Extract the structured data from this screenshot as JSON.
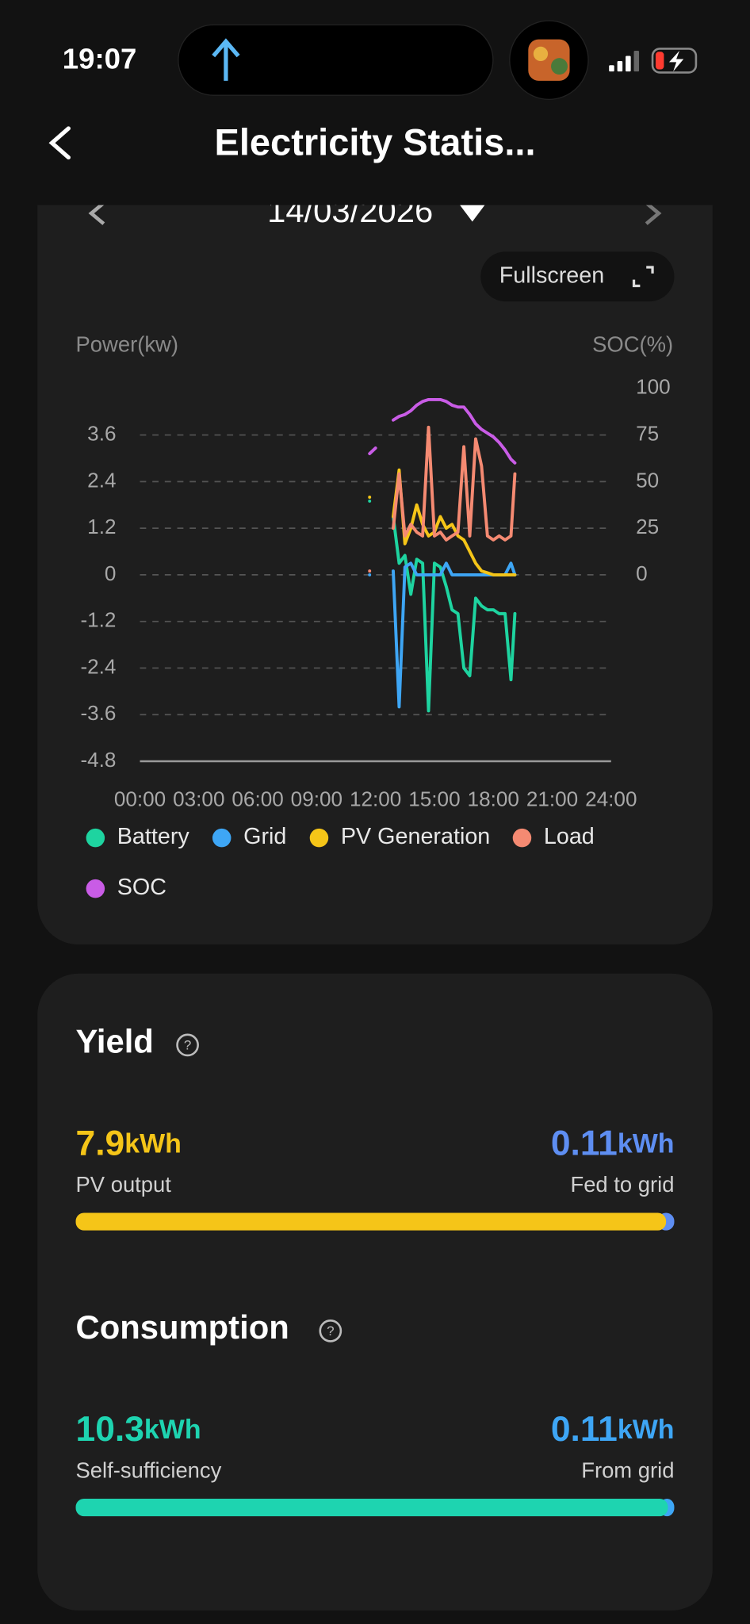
{
  "status_bar": {
    "time": "19:07"
  },
  "header": {
    "title": "Electricity Statis..."
  },
  "date_picker": {
    "date": "14/03/2026"
  },
  "fullscreen_button": {
    "label": "Fullscreen"
  },
  "chart_data": {
    "type": "line",
    "y_label": "Power(kw)",
    "y2_label": "SOC(%)",
    "x": [
      11.7,
      12.0,
      12.3,
      12.6,
      12.9,
      13.2,
      13.5,
      13.8,
      14.1,
      14.4,
      14.7,
      15.0,
      15.3,
      15.6,
      15.9,
      16.2,
      16.5,
      16.8,
      17.1,
      17.4,
      17.7,
      18.0,
      18.3,
      18.6,
      18.9,
      19.1
    ],
    "xlim": [
      0,
      24
    ],
    "xticks": [
      {
        "value": 0,
        "label": "00:00"
      },
      {
        "value": 3,
        "label": "03:00"
      },
      {
        "value": 6,
        "label": "06:00"
      },
      {
        "value": 9,
        "label": "09:00"
      },
      {
        "value": 12,
        "label": "12:00"
      },
      {
        "value": 15,
        "label": "15:00"
      },
      {
        "value": 18,
        "label": "18:00"
      },
      {
        "value": 21,
        "label": "21:00"
      },
      {
        "value": 24,
        "label": "24:00"
      }
    ],
    "ylim": [
      -4.8,
      4.8
    ],
    "yticks": [
      -4.8,
      -3.6,
      -2.4,
      -1.2,
      0,
      1.2,
      2.4,
      3.6
    ],
    "y2lim": [
      -100,
      100
    ],
    "y2ticks": [
      0,
      25,
      50,
      75,
      100
    ],
    "grid": true,
    "series": [
      {
        "name": "Battery",
        "color": "#1ed4a0",
        "values": [
          1.9,
          null,
          null,
          null,
          1.5,
          0.3,
          0.5,
          -0.5,
          0.4,
          0.3,
          -3.5,
          0.3,
          0.2,
          -0.3,
          -0.9,
          -1.0,
          -2.4,
          -2.6,
          -0.6,
          -0.8,
          -0.9,
          -0.9,
          -1.0,
          -1.0,
          -2.7,
          -1.0
        ]
      },
      {
        "name": "Grid",
        "color": "#3ea6f5",
        "values": [
          0.0,
          null,
          null,
          null,
          0.1,
          -3.4,
          0.2,
          0.3,
          0.0,
          0.0,
          0.0,
          0.0,
          0.0,
          0.3,
          0.0,
          0.0,
          0.0,
          0.0,
          0.0,
          0.0,
          0.0,
          0.0,
          0.0,
          0.0,
          0.3,
          0.0
        ]
      },
      {
        "name": "PV Generation",
        "color": "#f5c518",
        "values": [
          2.0,
          null,
          null,
          null,
          1.5,
          2.7,
          0.8,
          1.2,
          1.8,
          1.3,
          1.0,
          1.1,
          1.5,
          1.2,
          1.3,
          1.0,
          0.9,
          0.6,
          0.3,
          0.1,
          0.05,
          0.0,
          0.0,
          0.0,
          0.0,
          0.0
        ]
      },
      {
        "name": "Load",
        "color": "#f58a72",
        "values": [
          0.1,
          null,
          null,
          null,
          1.2,
          2.6,
          1.0,
          1.3,
          1.1,
          1.0,
          3.8,
          1.0,
          1.1,
          0.9,
          1.0,
          1.1,
          3.3,
          1.0,
          3.5,
          2.8,
          1.0,
          0.9,
          1.0,
          0.9,
          1.0,
          2.6
        ]
      },
      {
        "name": "SOC",
        "color": "#c95ce6",
        "axis": "y2",
        "values": [
          65,
          68,
          null,
          null,
          83,
          85,
          86,
          88,
          91,
          93,
          94,
          94,
          94,
          93,
          91,
          90,
          90,
          86,
          81,
          78,
          76,
          74,
          71,
          67,
          62,
          60
        ]
      }
    ]
  },
  "yield": {
    "title": "Yield",
    "pv_output": {
      "value": 7.9,
      "unit": "kWh",
      "label": "PV output",
      "color": "#f5c518"
    },
    "fed_to_grid": {
      "value": 0.11,
      "unit": "kWh",
      "label": "Fed to grid",
      "color": "#5e8ef2"
    }
  },
  "consumption": {
    "title": "Consumption",
    "self_sufficiency": {
      "value": 10.3,
      "unit": "kWh",
      "label": "Self-sufficiency",
      "color": "#1ed4b0"
    },
    "from_grid": {
      "value": 0.11,
      "unit": "kWh",
      "label": "From grid",
      "color": "#3ea6f5"
    }
  }
}
